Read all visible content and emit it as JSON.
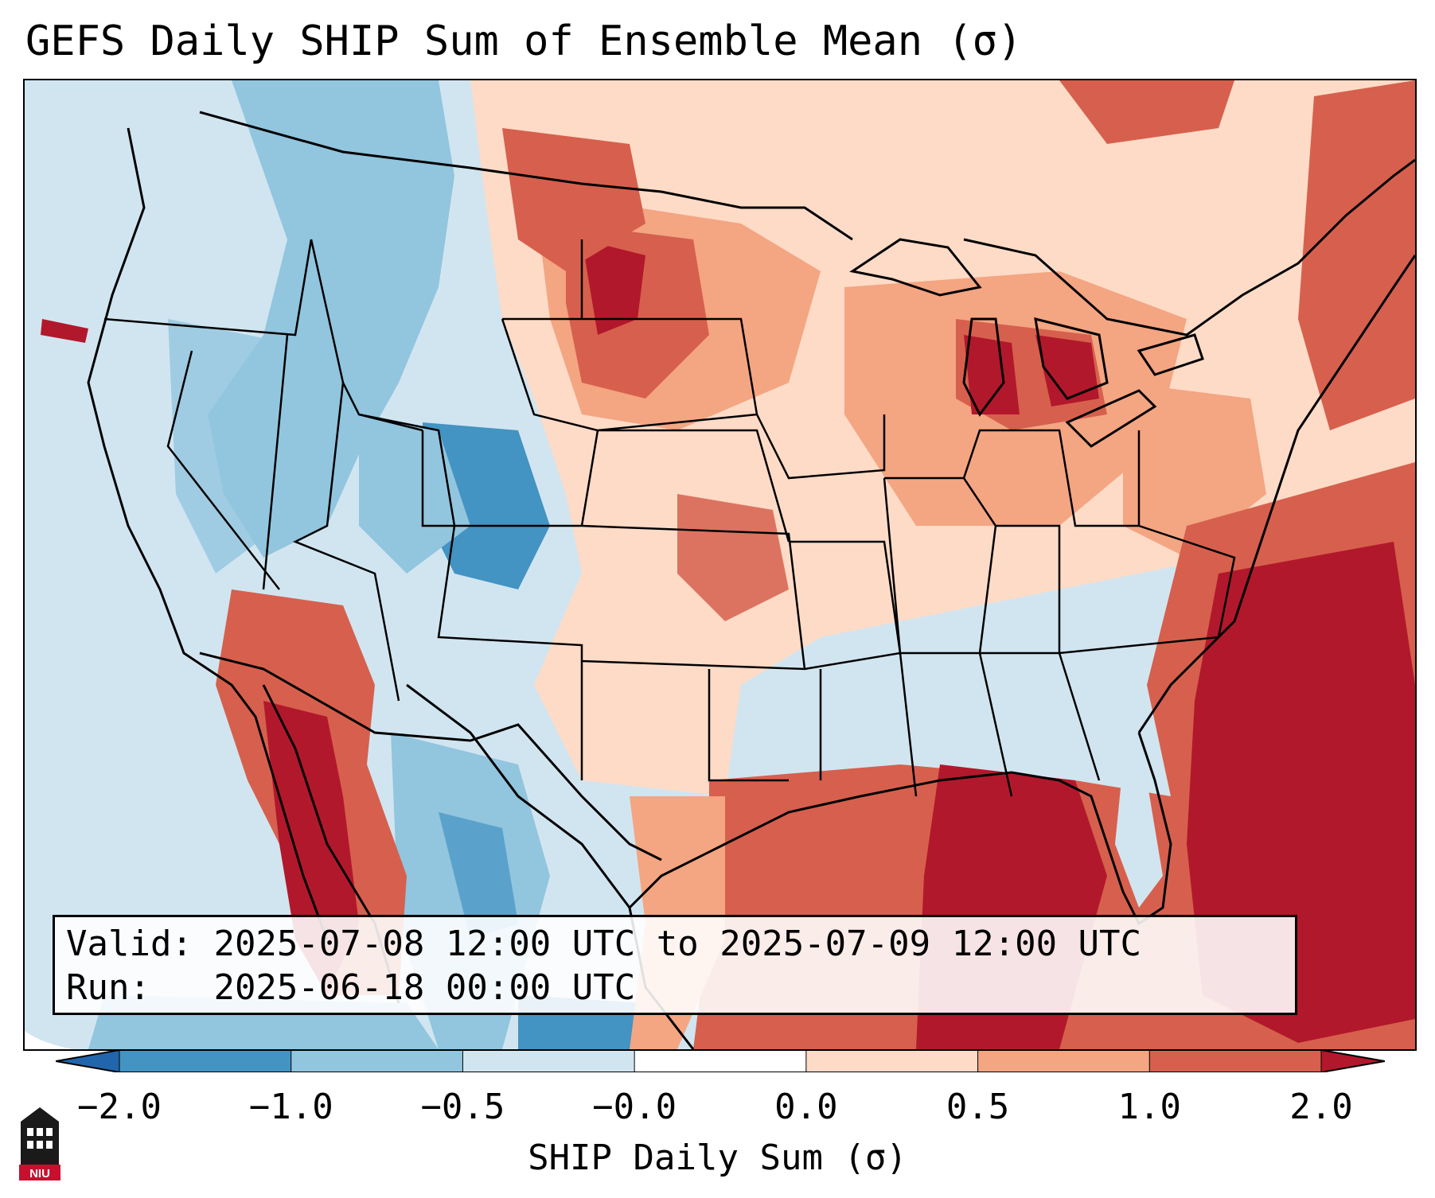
{
  "title": "GEFS Daily SHIP Sum of Ensemble Mean (σ)",
  "info": {
    "valid_label": "Valid:",
    "valid_value": "2025-07-08 12:00 UTC to 2025-07-09 12:00 UTC",
    "run_label": "Run:",
    "run_value": "2025-06-18 00:00 UTC"
  },
  "colorbar": {
    "label": "SHIP Daily Sum (σ)",
    "ticks": [
      "−2.0",
      "−1.0",
      "−0.5",
      "−0.0",
      "0.0",
      "0.5",
      "1.0",
      "2.0"
    ],
    "colors": [
      "#2166ac",
      "#4393c3",
      "#92c5de",
      "#d1e5f0",
      "#ffffff",
      "#fddbc7",
      "#f4a582",
      "#d6604d",
      "#b2182b"
    ],
    "extend": "both"
  },
  "map": {
    "region": "Continental United States",
    "projection": "Lambert Conformal",
    "background_color": "#d1e5f0",
    "outside_domain_color": "#ffffff"
  },
  "logo": {
    "icon": "niu-tower-icon",
    "text": "NIU"
  }
}
